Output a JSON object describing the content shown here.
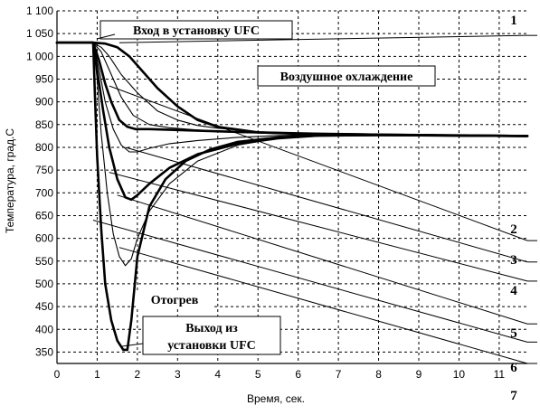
{
  "chart_data": {
    "type": "line",
    "xlabel": "Время, сек.",
    "ylabel": "Температура, град.С",
    "xlim": [
      0,
      11.7
    ],
    "ylim": [
      325,
      1100
    ],
    "x_ticks": [
      0,
      1,
      2,
      3,
      4,
      5,
      6,
      7,
      8,
      9,
      10,
      11
    ],
    "y_ticks": [
      350,
      400,
      450,
      500,
      550,
      600,
      650,
      700,
      750,
      800,
      850,
      900,
      950,
      1000,
      1050,
      1100
    ],
    "y_tick_labels": [
      "350",
      "400",
      "450",
      "500",
      "550",
      "600",
      "650",
      "700",
      "750",
      "800",
      "850",
      "900",
      "950",
      "1 000",
      "1 050",
      "1 100"
    ],
    "grid": "dashed",
    "series": [
      {
        "stroke": "thick",
        "x": [
          0,
          0.9,
          1.2,
          1.5,
          1.8,
          2.1,
          2.5,
          3.0,
          3.5,
          4.0,
          5.0,
          6.0,
          8.0,
          10.0,
          11.7
        ],
        "y": [
          1030,
          1030,
          1028,
          1020,
          1000,
          970,
          930,
          890,
          860,
          845,
          833,
          830,
          828,
          826,
          825
        ]
      },
      {
        "stroke": "thin",
        "x": [
          0,
          0.9,
          1.1,
          1.3,
          1.6,
          2.0,
          2.5,
          3.0,
          3.5,
          4.0,
          5.0,
          6.0,
          8.0,
          11.7
        ],
        "y": [
          1030,
          1030,
          1020,
          1000,
          960,
          920,
          880,
          860,
          848,
          842,
          834,
          830,
          828,
          825
        ]
      },
      {
        "stroke": "thin",
        "x": [
          0,
          0.9,
          1.1,
          1.3,
          1.6,
          1.9,
          2.3,
          2.8,
          3.5,
          4.5,
          6.0,
          8.0,
          11.7
        ],
        "y": [
          1030,
          1030,
          1010,
          970,
          910,
          870,
          850,
          843,
          838,
          833,
          830,
          828,
          825
        ]
      },
      {
        "stroke": "thick",
        "x": [
          0,
          0.9,
          1.05,
          1.2,
          1.35,
          1.55,
          1.75,
          1.95,
          2.3,
          3.0,
          3.8,
          4.5,
          5.5,
          6.5,
          8.0,
          11.7
        ],
        "y": [
          1030,
          1030,
          990,
          940,
          900,
          860,
          845,
          840,
          840,
          838,
          836,
          834,
          832,
          830,
          828,
          825
        ]
      },
      {
        "stroke": "thin",
        "x": [
          0,
          0.9,
          1.05,
          1.2,
          1.4,
          1.6,
          1.8,
          2.0,
          2.3,
          2.8,
          3.5,
          4.5,
          5.5,
          6.5,
          8.0,
          11.7
        ],
        "y": [
          1030,
          1030,
          970,
          900,
          840,
          805,
          790,
          790,
          798,
          808,
          815,
          822,
          826,
          828,
          827,
          825
        ]
      },
      {
        "stroke": "thick",
        "x": [
          0,
          0.9,
          1.0,
          1.15,
          1.3,
          1.5,
          1.7,
          1.85,
          2.0,
          2.3,
          2.8,
          3.5,
          4.5,
          5.5,
          6.5,
          8.0,
          11.7
        ],
        "y": [
          1030,
          1030,
          970,
          880,
          800,
          730,
          690,
          685,
          695,
          720,
          755,
          785,
          808,
          820,
          826,
          827,
          825
        ]
      },
      {
        "stroke": "thin",
        "x": [
          0,
          0.9,
          1.0,
          1.1,
          1.25,
          1.4,
          1.55,
          1.7,
          1.85,
          2.0,
          2.3,
          2.8,
          3.5,
          4.5,
          5.5,
          6.5,
          8.0,
          11.7
        ],
        "y": [
          1030,
          1030,
          950,
          830,
          700,
          610,
          560,
          540,
          555,
          600,
          660,
          720,
          770,
          805,
          820,
          826,
          827,
          825
        ]
      },
      {
        "stroke": "thick",
        "x": [
          0,
          0.9,
          0.95,
          1.0,
          1.1,
          1.2,
          1.35,
          1.5,
          1.65,
          1.75,
          1.85,
          2.0,
          2.3,
          2.7,
          3.2,
          3.8,
          4.5,
          5.5,
          6.5,
          8.0,
          11.7
        ],
        "y": [
          1030,
          1030,
          900,
          780,
          620,
          500,
          420,
          375,
          355,
          355,
          420,
          560,
          670,
          730,
          770,
          795,
          812,
          822,
          826,
          827,
          825
        ]
      }
    ],
    "annotations": [
      "Вход в установку UFC",
      "Воздушное охлаждение",
      "Отогрев",
      "Выход из",
      "установки  UFC"
    ],
    "curve_labels": [
      "1",
      "2",
      "3",
      "4",
      "5",
      "6",
      "7"
    ]
  }
}
